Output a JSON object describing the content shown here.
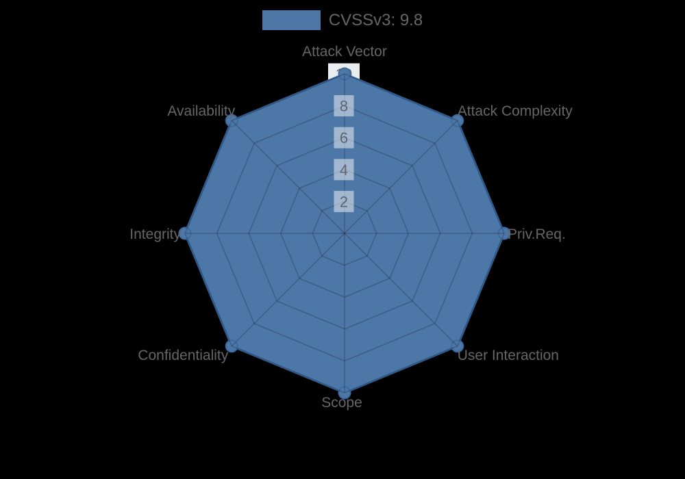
{
  "legend": {
    "label": "CVSSv3: 9.8"
  },
  "chart_data": {
    "type": "radar",
    "title": "",
    "categories": [
      "Attack Vector",
      "Attack Complexity",
      "Priv.Req.",
      "User Interaction",
      "Scope",
      "Confidentiality",
      "Integrity",
      "Availability"
    ],
    "series": [
      {
        "name": "CVSSv3: 9.8",
        "values": [
          10,
          10,
          10,
          10,
          10,
          10,
          10,
          10
        ]
      }
    ],
    "rlim": [
      0,
      10
    ],
    "ticks": [
      2,
      4,
      6,
      8,
      10
    ],
    "grid": true,
    "legend_position": "top",
    "colors": {
      "background": "#000000",
      "fill": "#4d77a7",
      "line": "#3a6aa0",
      "grid": "rgba(0,0,0,0.2)",
      "axis_label": "#666666",
      "tick_text": "#5d656e",
      "tick_backdrop": "rgba(255,255,255,0.48)",
      "tick_backdrop_outer": "#e9edf0"
    }
  }
}
